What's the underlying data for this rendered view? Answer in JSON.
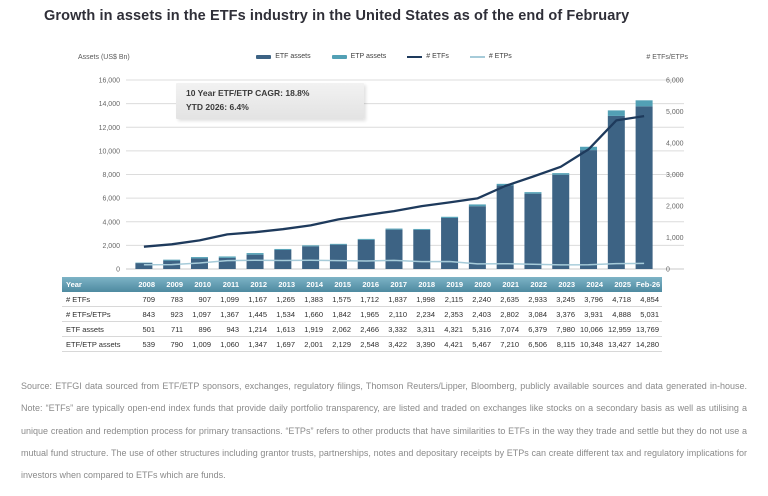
{
  "title": "Growth in assets in the ETFs industry in the United States as of the end of February",
  "chart": {
    "left_axis_title": "Assets (US$ Bn)",
    "right_axis_title": "# ETFs/ETPs",
    "legend": [
      {
        "label": "ETF assets"
      },
      {
        "label": "ETP assets"
      },
      {
        "label": "# ETFs"
      },
      {
        "label": "# ETPs"
      }
    ],
    "annotation": {
      "cagr": "10 Year ETF/ETP CAGR: 18.8%",
      "ytd": "YTD 2026: 6.4%"
    },
    "colors": {
      "etf_bar": "#3d6384",
      "etp_bar": "#52a0b5",
      "etfs_line": "#1e3a5c",
      "etps_line": "#a6cbd9",
      "grid": "#dcdcdc",
      "tick_text": "#666666"
    }
  },
  "chart_data": {
    "type": "bar",
    "subtype": "stacked bars with overlaid lines (combo chart)",
    "title": "Growth in assets in the ETFs industry in the United States as of the end of February",
    "categories": [
      "2008",
      "2009",
      "2010",
      "2011",
      "2012",
      "2013",
      "2014",
      "2015",
      "2016",
      "2017",
      "2018",
      "2019",
      "2020",
      "2021",
      "2022",
      "2023",
      "2024",
      "2025",
      "Feb-26"
    ],
    "series": [
      {
        "name": "ETF assets",
        "type": "bar",
        "stack": "assets",
        "axis": "left",
        "values": [
          501,
          711,
          896,
          943,
          1214,
          1613,
          1919,
          2062,
          2466,
          3332,
          3311,
          4321,
          5316,
          7074,
          6379,
          7980,
          10066,
          12959,
          13769
        ]
      },
      {
        "name": "ETP assets",
        "type": "bar",
        "stack": "assets",
        "axis": "left",
        "values": [
          38,
          79,
          113,
          117,
          133,
          84,
          82,
          67,
          82,
          90,
          79,
          100,
          151,
          136,
          127,
          135,
          282,
          468,
          511
        ]
      },
      {
        "name": "# ETFs",
        "type": "line",
        "axis": "right",
        "values": [
          709,
          783,
          907,
          1099,
          1167,
          1265,
          1383,
          1575,
          1712,
          1837,
          1998,
          2115,
          2240,
          2635,
          2933,
          3245,
          3796,
          4718,
          4854
        ]
      },
      {
        "name": "# ETPs",
        "type": "line",
        "axis": "right",
        "values": [
          134,
          140,
          190,
          268,
          278,
          269,
          277,
          267,
          253,
          273,
          236,
          238,
          163,
          167,
          151,
          131,
          135,
          170,
          177
        ]
      }
    ],
    "xlabel": "",
    "ylabel_left": "Assets (US$ Bn)",
    "ylabel_right": "# ETFs/ETPs",
    "left_ylim": [
      0,
      16000
    ],
    "left_ticks": [
      0,
      2000,
      4000,
      6000,
      8000,
      10000,
      12000,
      14000,
      16000
    ],
    "right_ylim": [
      0,
      6000
    ],
    "right_ticks": [
      0,
      1000,
      2000,
      3000,
      4000,
      5000,
      6000
    ],
    "grid": true,
    "legend_position": "top-center",
    "annotations": [
      "10 Year ETF/ETP CAGR: 18.8%",
      "YTD 2026: 6.4%"
    ]
  },
  "table": {
    "header": [
      "Year",
      "2008",
      "2009",
      "2010",
      "2011",
      "2012",
      "2013",
      "2014",
      "2015",
      "2016",
      "2017",
      "2018",
      "2019",
      "2020",
      "2021",
      "2022",
      "2023",
      "2024",
      "2025",
      "Feb-26"
    ],
    "rows": [
      {
        "label": "# ETFs",
        "values": [
          "709",
          "783",
          "907",
          "1,099",
          "1,167",
          "1,265",
          "1,383",
          "1,575",
          "1,712",
          "1,837",
          "1,998",
          "2,115",
          "2,240",
          "2,635",
          "2,933",
          "3,245",
          "3,796",
          "4,718",
          "4,854"
        ]
      },
      {
        "label": "# ETFs/ETPs",
        "values": [
          "843",
          "923",
          "1,097",
          "1,367",
          "1,445",
          "1,534",
          "1,660",
          "1,842",
          "1,965",
          "2,110",
          "2,234",
          "2,353",
          "2,403",
          "2,802",
          "3,084",
          "3,376",
          "3,931",
          "4,888",
          "5,031"
        ]
      },
      {
        "label": "ETF assets",
        "values": [
          "501",
          "711",
          "896",
          "943",
          "1,214",
          "1,613",
          "1,919",
          "2,062",
          "2,466",
          "3,332",
          "3,311",
          "4,321",
          "5,316",
          "7,074",
          "6,379",
          "7,980",
          "10,066",
          "12,959",
          "13,769"
        ]
      },
      {
        "label": "ETF/ETP assets",
        "values": [
          "539",
          "790",
          "1,009",
          "1,060",
          "1,347",
          "1,697",
          "2,001",
          "2,129",
          "2,548",
          "3,422",
          "3,390",
          "4,421",
          "5,467",
          "7,210",
          "6,506",
          "8,115",
          "10,348",
          "13,427",
          "14,280"
        ]
      }
    ]
  },
  "source_note": "Source: ETFGI data sourced from ETF/ETP sponsors, exchanges, regulatory filings, Thomson Reuters/Lipper, Bloomberg, publicly available sources and data generated in-house. Note: “ETFs” are typically open-end index funds that provide daily portfolio transparency, are listed and traded on exchanges like stocks on a secondary basis as well as utilising a unique creation and redemption process for primary transactions. “ETPs” refers to other products that have similarities to ETFs in the way they trade and settle but they do not use a mutual fund structure. The use of other structures including grantor trusts, partnerships, notes and depositary receipts by ETPs can create different tax and regulatory implications for investors when compared to ETFs which are funds."
}
